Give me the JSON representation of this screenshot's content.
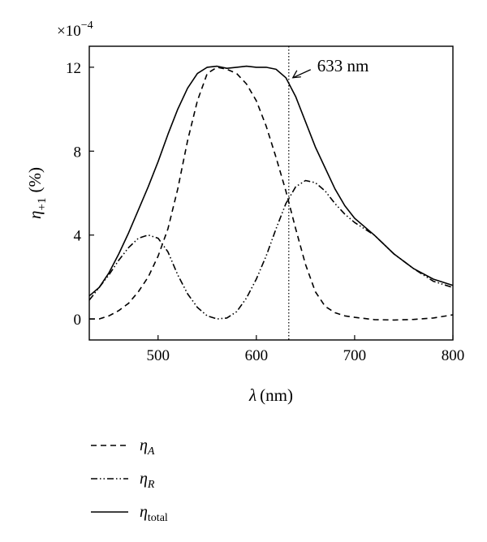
{
  "chart_data": {
    "type": "line",
    "multiplier_label": "×10",
    "multiplier_exponent": "−4",
    "xlabel_symbol": "λ",
    "xlabel_unit": "(nm)",
    "ylabel_symbol": "η",
    "ylabel_sub": "+1",
    "ylabel_unit": "(%)",
    "xlim": [
      430,
      800
    ],
    "ylim": [
      -1,
      13
    ],
    "xticks": [
      500,
      600,
      700,
      800
    ],
    "yticks": [
      0,
      4,
      8,
      12
    ],
    "annotation": {
      "text": "633 nm",
      "x": 633,
      "y": 11.5
    },
    "vline_x": 633,
    "series": [
      {
        "name_symbol": "η",
        "name_sub": "A",
        "style": "dashed",
        "x": [
          430,
          440,
          450,
          460,
          470,
          480,
          490,
          500,
          510,
          520,
          530,
          540,
          550,
          560,
          570,
          580,
          590,
          600,
          610,
          620,
          630,
          640,
          650,
          660,
          670,
          680,
          690,
          700,
          720,
          740,
          760,
          780,
          800
        ],
        "y": [
          0,
          0,
          0.15,
          0.4,
          0.75,
          1.3,
          2.0,
          3.0,
          4.3,
          6.2,
          8.5,
          10.4,
          11.7,
          12.0,
          11.9,
          11.7,
          11.2,
          10.4,
          9.2,
          7.7,
          6.1,
          4.3,
          2.6,
          1.3,
          0.6,
          0.3,
          0.15,
          0.08,
          -0.03,
          -0.05,
          -0.02,
          0.05,
          0.2
        ]
      },
      {
        "name_symbol": "η",
        "name_sub": "R",
        "style": "dash-dot-dot",
        "x": [
          430,
          440,
          450,
          460,
          470,
          480,
          490,
          500,
          510,
          520,
          530,
          540,
          550,
          560,
          570,
          580,
          590,
          600,
          610,
          620,
          630,
          640,
          650,
          660,
          670,
          680,
          690,
          700,
          720,
          740,
          760,
          780,
          800
        ],
        "y": [
          0.9,
          1.5,
          2.1,
          2.8,
          3.4,
          3.85,
          4.0,
          3.85,
          3.2,
          2.1,
          1.2,
          0.55,
          0.15,
          0.0,
          0.05,
          0.35,
          1.0,
          1.9,
          3.0,
          4.3,
          5.5,
          6.3,
          6.6,
          6.5,
          6.1,
          5.5,
          5.0,
          4.6,
          4.0,
          3.1,
          2.4,
          1.8,
          1.5
        ]
      },
      {
        "name_symbol": "η",
        "name_sub": "total",
        "style": "solid",
        "x": [
          430,
          440,
          450,
          460,
          470,
          480,
          490,
          500,
          510,
          520,
          530,
          540,
          550,
          560,
          570,
          580,
          590,
          600,
          610,
          620,
          630,
          640,
          650,
          660,
          670,
          680,
          690,
          700,
          720,
          740,
          760,
          780,
          800
        ],
        "y": [
          1.1,
          1.5,
          2.2,
          3.1,
          4.1,
          5.2,
          6.3,
          7.5,
          8.8,
          10.0,
          11.0,
          11.7,
          12.0,
          12.05,
          11.95,
          12.0,
          12.05,
          12.0,
          12.0,
          11.9,
          11.5,
          10.6,
          9.4,
          8.2,
          7.2,
          6.2,
          5.4,
          4.8,
          4.0,
          3.1,
          2.4,
          1.9,
          1.6
        ]
      }
    ]
  }
}
